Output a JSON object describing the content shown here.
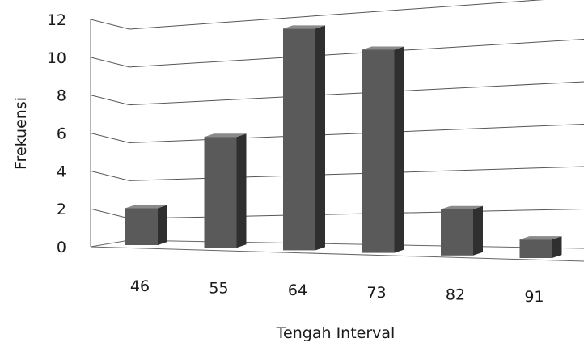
{
  "chart_data": {
    "type": "bar",
    "title": "",
    "xlabel": "Tengah Interval",
    "ylabel": "Frekuensi",
    "categories": [
      "46",
      "55",
      "64",
      "73",
      "82",
      "91"
    ],
    "values": [
      2,
      6,
      12,
      11,
      2.5,
      1
    ],
    "ylim": [
      0,
      12
    ],
    "yticks": [
      0,
      2,
      4,
      6,
      8,
      10,
      12
    ],
    "grid": true,
    "three_d": true,
    "colors": {
      "bar_front": "#5a5a5a",
      "bar_side": "#2f2f2f",
      "bar_top": "#8a8a8a"
    }
  }
}
